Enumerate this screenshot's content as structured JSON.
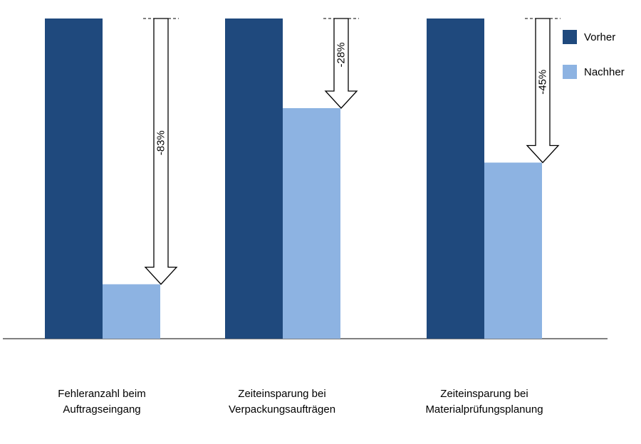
{
  "chart_data": {
    "type": "bar",
    "categories": [
      [
        "Fehleranzahl beim",
        "Auftragseingang"
      ],
      [
        "Zeiteinsparung bei",
        "Verpackungsaufträgen"
      ],
      [
        "Zeiteinsparung bei",
        "Materialprüfungsplanung"
      ]
    ],
    "series": [
      {
        "name": "Vorher",
        "values": [
          100,
          100,
          100
        ],
        "color": "#1F497D"
      },
      {
        "name": "Nachher",
        "values": [
          17,
          72,
          55
        ],
        "color": "#8DB3E2"
      }
    ],
    "annotations": [
      "-83%",
      "-28%",
      "-45%"
    ],
    "ylim": [
      0,
      100
    ],
    "grid": false,
    "legend": "top-right"
  }
}
